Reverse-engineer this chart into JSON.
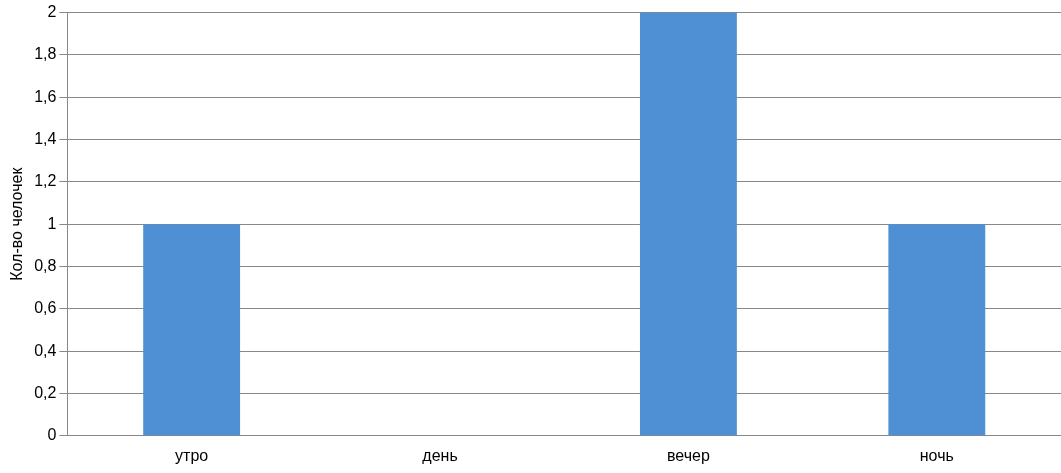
{
  "chart_data": {
    "type": "bar",
    "ylabel": "Кол-во челочек",
    "categories": [
      "утро",
      "день",
      "вечер",
      "ночь"
    ],
    "values": [
      1,
      0,
      2,
      1
    ],
    "color": "#4f8fd3",
    "ylim": [
      0,
      2
    ],
    "yticks": [
      0,
      {
        "value": 0.2,
        "label": "0,2"
      },
      {
        "value": 0.4,
        "label": "0,4"
      },
      {
        "value": 0.6,
        "label": "0,6"
      },
      {
        "value": 0.8,
        "label": "0,8"
      },
      1,
      {
        "value": 1.2,
        "label": "1,2"
      },
      {
        "value": 1.4,
        "label": "1,4"
      },
      {
        "value": 1.6,
        "label": "1,6"
      },
      {
        "value": 1.8,
        "label": "1,8"
      },
      2
    ],
    "grid": "y",
    "legend": false
  }
}
